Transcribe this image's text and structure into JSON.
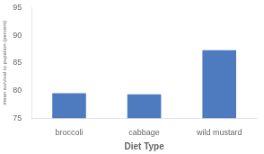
{
  "chart_data": {
    "type": "bar",
    "categories": [
      "broccoli",
      "cabbage",
      "wild mustard"
    ],
    "values": [
      79.5,
      79.3,
      87.3
    ],
    "color": "#4e7bbf",
    "xlabel": "Diet Type",
    "ylabel": "mean survival to pupation (percent)",
    "ylim": [
      75,
      95
    ],
    "yticks": [
      75,
      80,
      85,
      90,
      95
    ],
    "grid": false
  }
}
